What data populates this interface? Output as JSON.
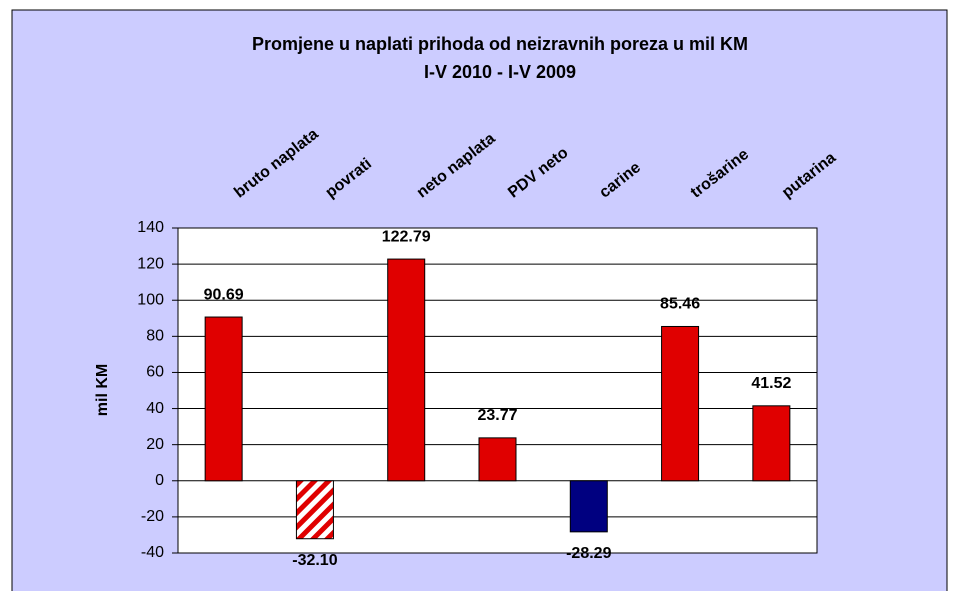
{
  "chart_data": {
    "type": "bar",
    "title": "Promjene u naplati prihoda od neizravnih poreza u mil KM",
    "subtitle": "I-V 2010 - I-V 2009",
    "ylabel": "mil KM",
    "categories": [
      "bruto naplata",
      "povrati",
      "neto naplata",
      "PDV neto",
      "carine",
      "trošarine",
      "putarina"
    ],
    "values": [
      90.69,
      -32.1,
      122.79,
      23.77,
      -28.29,
      85.46,
      41.52
    ],
    "value_labels": [
      "90.69",
      "-32.10",
      "122.79",
      "23.77",
      "-28.29",
      "85.46",
      "41.52"
    ],
    "colors": [
      "#e00000",
      "#e00000",
      "#e00000",
      "#e00000",
      "#000080",
      "#e00000",
      "#e00000"
    ],
    "hatched": [
      false,
      true,
      false,
      false,
      false,
      false,
      false
    ],
    "ylim": [
      -40,
      140
    ],
    "yticks": [
      -40,
      -20,
      0,
      20,
      40,
      60,
      80,
      100,
      120,
      140
    ],
    "grid": true
  }
}
